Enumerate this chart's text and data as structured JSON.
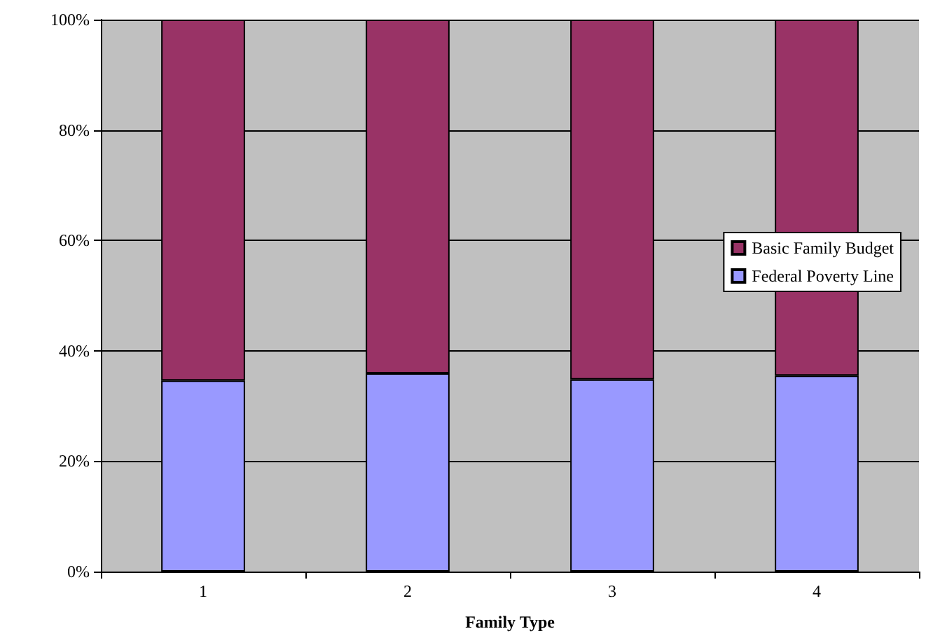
{
  "chart_data": {
    "type": "bar",
    "stacked": true,
    "xlabel": "Family Type",
    "categories": [
      "1",
      "2",
      "3",
      "4"
    ],
    "series": [
      {
        "name": "Federal Poverty Line",
        "color": "#9999ff",
        "values": [
          34.6,
          35.9,
          34.8,
          35.5
        ]
      },
      {
        "name": "Basic Family Budget",
        "color": "#993366",
        "values": [
          65.4,
          64.1,
          65.2,
          64.5
        ]
      }
    ],
    "ylim": [
      0,
      100
    ],
    "yticks": [
      {
        "value": 0,
        "label": "0%"
      },
      {
        "value": 20,
        "label": "20%"
      },
      {
        "value": 40,
        "label": "40%"
      },
      {
        "value": 60,
        "label": "60%"
      },
      {
        "value": 80,
        "label": "80%"
      },
      {
        "value": 100,
        "label": "100%"
      }
    ],
    "grid": "y",
    "legend": "right"
  }
}
